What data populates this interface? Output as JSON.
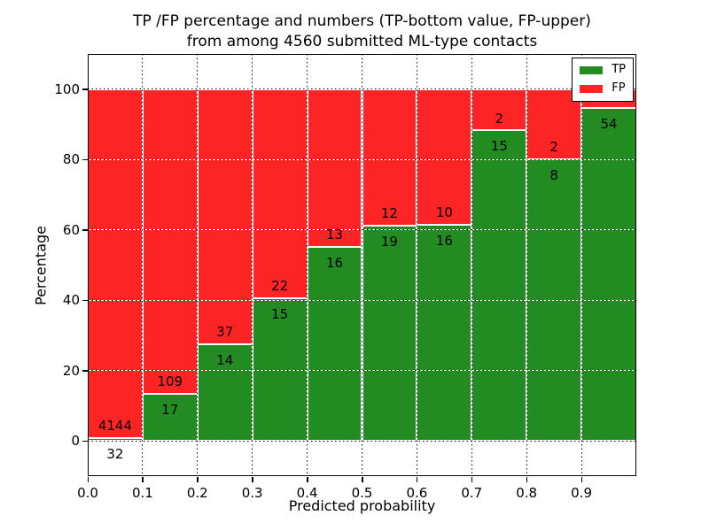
{
  "chart_data": {
    "type": "bar",
    "stacked": true,
    "title": "TP /FP percentage and numbers (TP-bottom value, FP-upper)\nfrom among 4560 submitted ML-type contacts",
    "title_lines": [
      "TP /FP percentage and numbers (TP-bottom value, FP-upper)",
      "from among 4560 submitted ML-type contacts"
    ],
    "xlabel": "Predicted probability",
    "ylabel": "Percentage",
    "xlim": [
      0.0,
      1.0
    ],
    "ylim": [
      -10,
      110
    ],
    "x_tick_labels": [
      "0.0",
      "0.1",
      "0.2",
      "0.3",
      "0.4",
      "0.5",
      "0.6",
      "0.7",
      "0.8",
      "0.9"
    ],
    "y_tick_values": [
      0,
      20,
      40,
      60,
      80,
      100
    ],
    "grid": true,
    "grid_style": "dotted",
    "bar_width_x": 0.1,
    "legend_position": "upper-right",
    "colors": {
      "tp": "#228b22",
      "fp": "#fc2424",
      "bar_edge": "#ffffff",
      "grid": "#000000",
      "text": "#000000"
    },
    "legend": [
      {
        "name": "TP",
        "color_key": "tp"
      },
      {
        "name": "FP",
        "color_key": "fp"
      }
    ],
    "bars": [
      {
        "x0": 0.0,
        "x1": 0.1,
        "tp_count": 32,
        "fp_count": 4144,
        "tp_label": "32",
        "fp_label": "4144",
        "tp_pct": 0.77
      },
      {
        "x0": 0.1,
        "x1": 0.2,
        "tp_count": 17,
        "fp_count": 109,
        "tp_label": "17",
        "fp_label": "109",
        "tp_pct": 13.49
      },
      {
        "x0": 0.2,
        "x1": 0.3,
        "tp_count": 14,
        "fp_count": 37,
        "tp_label": "14",
        "fp_label": "37",
        "tp_pct": 27.45
      },
      {
        "x0": 0.3,
        "x1": 0.4,
        "tp_count": 15,
        "fp_count": 22,
        "tp_label": "15",
        "fp_label": "22",
        "tp_pct": 40.54
      },
      {
        "x0": 0.4,
        "x1": 0.5,
        "tp_count": 16,
        "fp_count": 13,
        "tp_label": "16",
        "fp_label": "13",
        "tp_pct": 55.17
      },
      {
        "x0": 0.5,
        "x1": 0.6,
        "tp_count": 19,
        "fp_count": 12,
        "tp_label": "19",
        "fp_label": "12",
        "tp_pct": 61.29
      },
      {
        "x0": 0.6,
        "x1": 0.7,
        "tp_count": 16,
        "fp_count": 10,
        "tp_label": "16",
        "fp_label": "10",
        "tp_pct": 61.54
      },
      {
        "x0": 0.7,
        "x1": 0.8,
        "tp_count": 15,
        "fp_count": 2,
        "tp_label": "15",
        "fp_label": "2",
        "tp_pct": 88.24
      },
      {
        "x0": 0.8,
        "x1": 0.9,
        "tp_count": 8,
        "fp_count": 2,
        "tp_label": "8",
        "fp_label": "2",
        "tp_pct": 80.0
      },
      {
        "x0": 0.9,
        "x1": 1.0,
        "tp_count": 54,
        "fp_count": null,
        "tp_label": "54",
        "fp_label": "",
        "tp_pct": 94.7
      }
    ]
  }
}
